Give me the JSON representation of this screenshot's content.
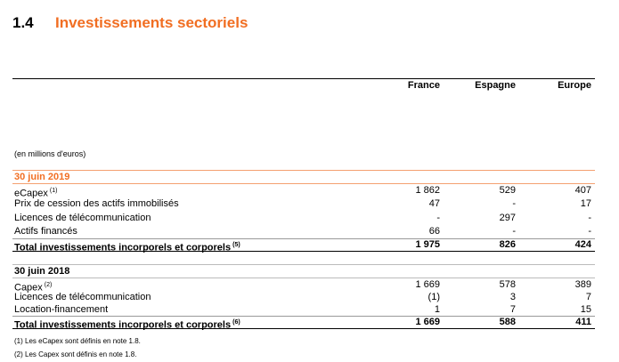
{
  "header": {
    "number": "1.4",
    "title": "Investissements sectoriels"
  },
  "table": {
    "columns": [
      "France",
      "Espagne",
      "Europe"
    ],
    "unit": "(en millions d'euros)",
    "sections": [
      {
        "title": "30 juin 2019",
        "rows": [
          {
            "label": "eCapex",
            "note": "(1)",
            "values": [
              "1 862",
              "529",
              "407"
            ]
          },
          {
            "label": "Prix de cession des actifs immobilisés",
            "values": [
              "47",
              "-",
              "17"
            ]
          },
          {
            "label": "Licences de télécommunication",
            "values": [
              "-",
              "297",
              "-"
            ]
          },
          {
            "label": "Actifs financés",
            "values": [
              "66",
              "-",
              "-"
            ]
          }
        ],
        "total": {
          "label": "Total investissements incorporels et corporels",
          "note": "(5)",
          "values": [
            "1 975",
            "826",
            "424"
          ]
        }
      },
      {
        "title": "30 juin 2018",
        "rows": [
          {
            "label": "Capex",
            "note": "(2)",
            "values": [
              "1 669",
              "578",
              "389"
            ]
          },
          {
            "label": "Licences de télécommunication",
            "values": [
              "(1)",
              "3",
              "7"
            ]
          },
          {
            "label": "Location-financement",
            "values": [
              "1",
              "7",
              "15"
            ]
          }
        ],
        "total": {
          "label": "Total investissements incorporels et corporels",
          "note": "(6)",
          "values": [
            "1 669",
            "588",
            "411"
          ]
        }
      }
    ]
  },
  "footnotes": [
    "(1) Les eCapex sont définis en note 1.8.",
    "(2) Les Capex sont définis en note 1.8."
  ]
}
